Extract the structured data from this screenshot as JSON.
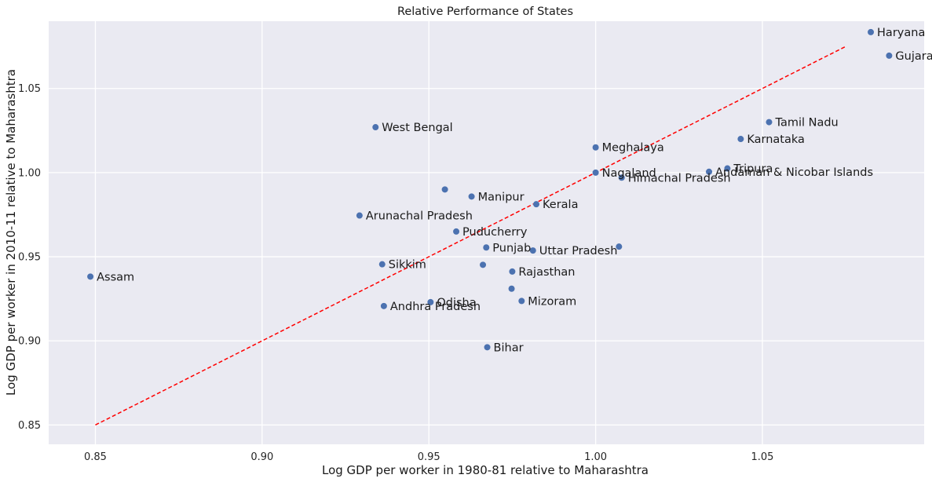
{
  "chart_data": {
    "type": "scatter",
    "title": "Relative Performance of States",
    "xlabel": "Log GDP per worker in 1980-81 relative to Maharashtra",
    "ylabel": "Log GDP per worker in 2010-11 relative to Maharashtra",
    "xlim": [
      0.836,
      1.0985
    ],
    "ylim": [
      0.8385,
      1.09
    ],
    "xticks": [
      0.85,
      0.9,
      0.95,
      1.0,
      1.05
    ],
    "xtick_labels": [
      "0.85",
      "0.90",
      "0.95",
      "1.00",
      "1.05"
    ],
    "yticks": [
      0.85,
      0.9,
      0.95,
      1.0,
      1.05
    ],
    "ytick_labels": [
      "0.85",
      "0.90",
      "0.95",
      "1.00",
      "1.05"
    ],
    "grid": true,
    "background": "#eaeaf2",
    "point_color": "#4c72b0",
    "reference_line": {
      "style": "dashed",
      "color": "#ff0000",
      "x": [
        0.85,
        1.075
      ],
      "y": [
        0.85,
        1.075
      ]
    },
    "points": [
      {
        "label": "Haryana",
        "x": 1.0825,
        "y": 1.0835
      },
      {
        "label": "Gujarat",
        "x": 1.088,
        "y": 1.0695
      },
      {
        "label": "Tamil Nadu",
        "x": 1.052,
        "y": 1.03
      },
      {
        "label": "Karnataka",
        "x": 1.0435,
        "y": 1.02
      },
      {
        "label": "West Bengal",
        "x": 0.934,
        "y": 1.027
      },
      {
        "label": "Meghalaya",
        "x": 1.0,
        "y": 1.015
      },
      {
        "label": "Tripura",
        "x": 1.0395,
        "y": 1.0025
      },
      {
        "label": "Andaman & Nicobar Islands",
        "x": 1.034,
        "y": 1.0005
      },
      {
        "label": "Nagaland",
        "x": 1.0,
        "y": 1.0
      },
      {
        "label": "Himachal Pradesh",
        "x": 1.0078,
        "y": 0.997
      },
      {
        "label": "",
        "x": 0.9548,
        "y": 0.99
      },
      {
        "label": "Manipur",
        "x": 0.9628,
        "y": 0.9858
      },
      {
        "label": "Kerala",
        "x": 0.9822,
        "y": 0.9812
      },
      {
        "label": "Arunachal Pradesh",
        "x": 0.9292,
        "y": 0.9745
      },
      {
        "label": "Puducherry",
        "x": 0.9582,
        "y": 0.965
      },
      {
        "label": "Punjab",
        "x": 0.9672,
        "y": 0.9555
      },
      {
        "label": "Uttar Pradesh",
        "x": 0.9812,
        "y": 0.9537
      },
      {
        "label": "",
        "x": 1.007,
        "y": 0.956
      },
      {
        "label": "Sikkim",
        "x": 0.936,
        "y": 0.9455
      },
      {
        "label": "",
        "x": 0.9662,
        "y": 0.9452
      },
      {
        "label": "Rajasthan",
        "x": 0.975,
        "y": 0.9412
      },
      {
        "label": "Assam",
        "x": 0.8485,
        "y": 0.9382
      },
      {
        "label": "",
        "x": 0.9748,
        "y": 0.931
      },
      {
        "label": "Mizoram",
        "x": 0.9778,
        "y": 0.9237
      },
      {
        "label": "Odisha",
        "x": 0.9505,
        "y": 0.923
      },
      {
        "label": "Andhra Pradesh",
        "x": 0.9365,
        "y": 0.9207
      },
      {
        "label": "Bihar",
        "x": 0.9675,
        "y": 0.8962
      }
    ]
  }
}
